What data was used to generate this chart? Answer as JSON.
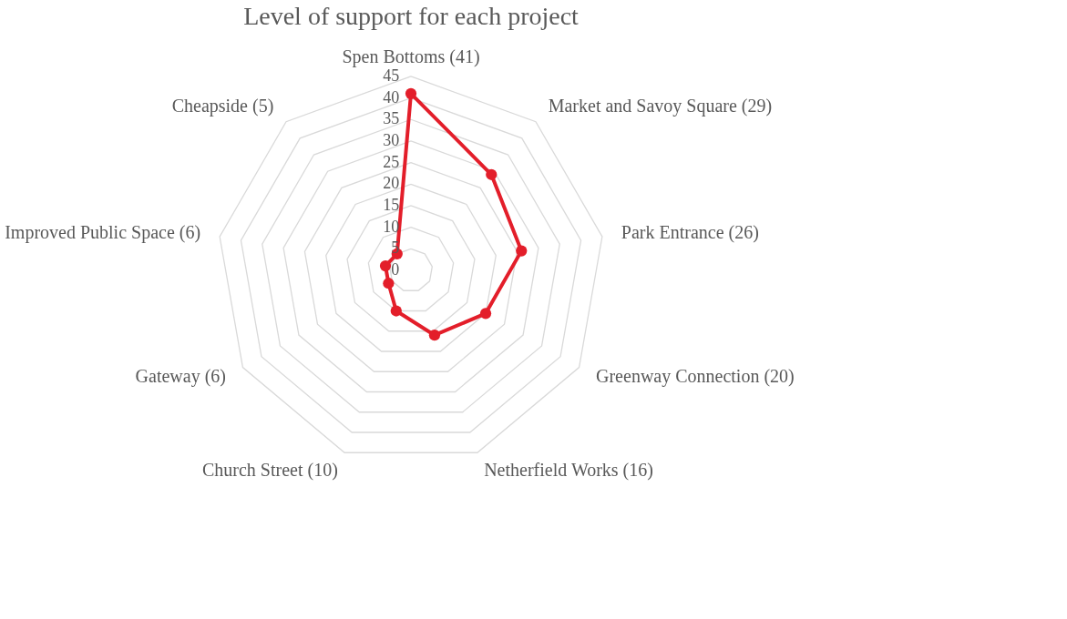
{
  "chart_data": {
    "type": "radar",
    "title": "Level of support for each project",
    "categories": [
      "Spen Bottoms (41)",
      "Market and Savoy Square (29)",
      "Park Entrance (26)",
      "Greenway Connection (20)",
      "Netherfield Works (16)",
      "Church Street (10)",
      "Gateway (6)",
      "Improved Public Space (6)",
      "Cheapside (5)"
    ],
    "series": [
      {
        "color": "#e31e2a",
        "values": [
          41,
          29,
          26,
          20,
          16,
          10,
          6,
          6,
          5
        ]
      }
    ],
    "ylim": [
      0,
      45
    ],
    "yticks": [
      0,
      5,
      10,
      15,
      20,
      25,
      30,
      35,
      40,
      45
    ],
    "grid": true,
    "marker": "circle",
    "line_style": "solid"
  }
}
